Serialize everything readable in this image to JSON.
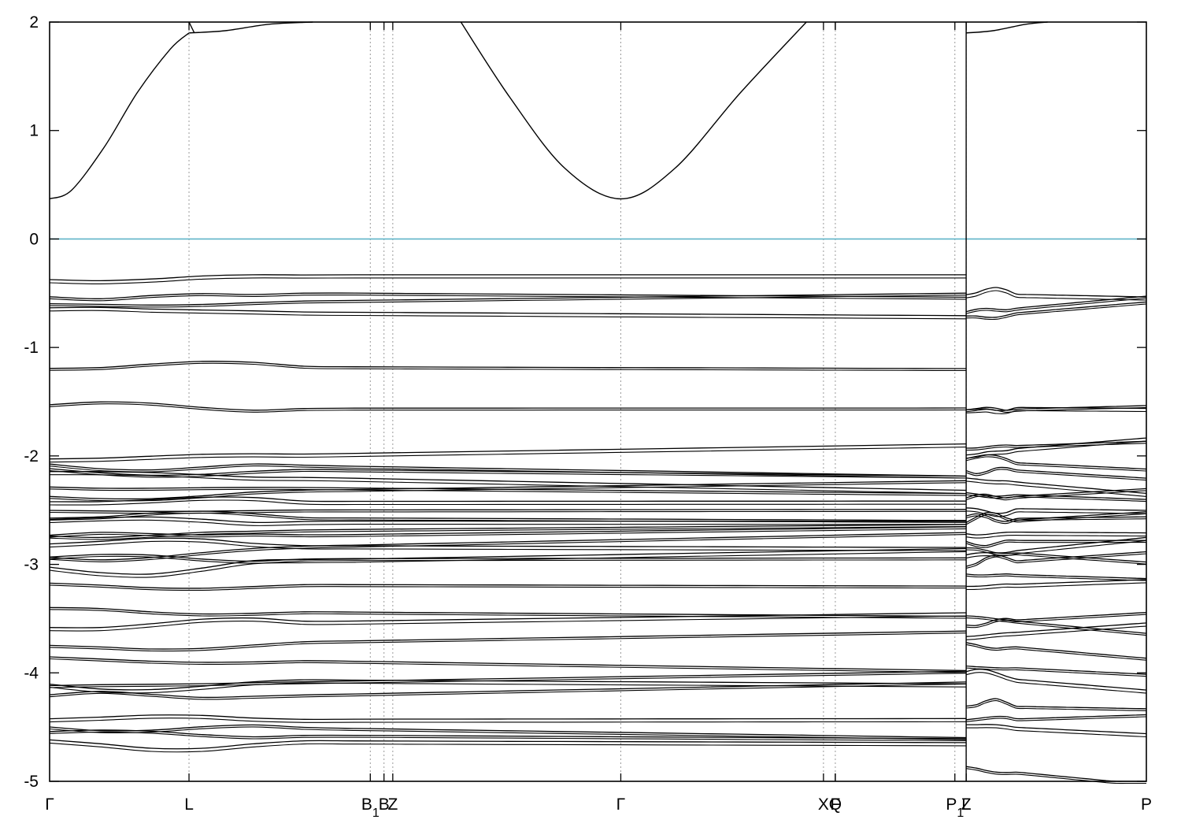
{
  "chart_data": {
    "type": "line",
    "title": "",
    "xlabel": "",
    "ylabel": "",
    "ylim": [
      -5,
      2
    ],
    "yticks": [
      -5,
      -4,
      -3,
      -2,
      -1,
      0,
      1,
      2
    ],
    "grid": "dotted vertical lines at high-symmetry points",
    "legend": "none",
    "reference_line": {
      "y": 0,
      "color": "#5fb4c8"
    },
    "band_color": "#000000",
    "xlim": [
      0,
      1
    ],
    "segments": [
      [
        0,
        0.8357
      ],
      [
        0.8357,
        1
      ]
    ],
    "high_symmetry_points": [
      {
        "label": "Γ",
        "x": 0.0
      },
      {
        "label": "L",
        "x": 0.1271
      },
      {
        "label": "B",
        "sub": "1",
        "x": 0.2924
      },
      {
        "label": "B",
        "x": 0.3049
      },
      {
        "label": "Z",
        "x": 0.3129
      },
      {
        "label": "Γ",
        "x": 0.5208
      },
      {
        "label": "X",
        "x": 0.7056
      },
      {
        "label": "Q",
        "x": 0.7164
      },
      {
        "label": "F",
        "x": 0.7164
      },
      {
        "label": "P",
        "sub": "1",
        "x": 0.8254
      },
      {
        "label": "Z",
        "x": 0.8357
      },
      {
        "label": "L",
        "x": 0.8357
      },
      {
        "label": "P",
        "x": 1.0
      }
    ],
    "conduction_bands": [
      {
        "x": [
          0,
          0.02,
          0.05,
          0.08,
          0.11,
          0.1271
        ],
        "y": [
          0.37,
          0.45,
          0.85,
          1.35,
          1.75,
          1.9
        ]
      },
      {
        "x": [
          0.1271,
          0.16,
          0.2,
          0.24
        ],
        "y": [
          1.9,
          1.92,
          1.98,
          2.0
        ]
      },
      {
        "x": [
          0.1271,
          0.132
        ],
        "y": [
          2.0,
          1.9
        ]
      },
      {
        "x": [
          0.375,
          0.42,
          0.47,
          0.5208,
          0.57,
          0.63,
          0.69
        ],
        "y": [
          2.0,
          1.3,
          0.65,
          0.37,
          0.65,
          1.35,
          2.0
        ]
      },
      {
        "x": [
          0.8357,
          0.86,
          0.89,
          0.91
        ],
        "y": [
          1.9,
          1.92,
          1.98,
          2.0
        ]
      }
    ],
    "valence_seeds_left": [
      -0.35,
      -0.48,
      -0.6,
      -0.66,
      -1.17,
      -1.56,
      -2.02,
      -2.05,
      -2.1,
      -2.15,
      -2.27,
      -2.35,
      -2.42,
      -2.5,
      -2.56,
      -2.6,
      -2.7,
      -2.76,
      -2.82,
      -2.88,
      -2.95,
      -3.0,
      -3.18,
      -3.42,
      -3.56,
      -3.75,
      -3.85,
      -4.05,
      -4.12,
      -4.25,
      -4.43,
      -4.47,
      -4.56,
      -4.62
    ],
    "valence_seeds_right": [
      -0.5,
      -0.68,
      -0.72,
      -1.55,
      -1.58,
      -1.92,
      -1.97,
      -2.04,
      -2.1,
      -2.2,
      -2.34,
      -2.4,
      -2.48,
      -2.58,
      -2.62,
      -2.7,
      -2.78,
      -2.86,
      -2.92,
      -3.0,
      -3.08,
      -3.2,
      -3.48,
      -3.54,
      -3.66,
      -3.72,
      -3.93,
      -4.02,
      -4.3,
      -4.44,
      -4.48,
      -4.87
    ]
  }
}
